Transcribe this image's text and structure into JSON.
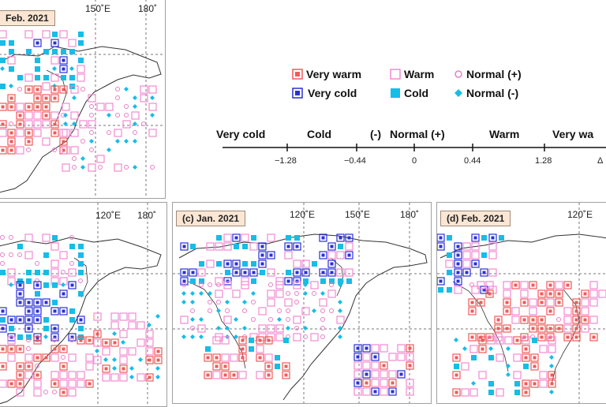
{
  "panels": {
    "b": {
      "label": "Feb. 2021"
    },
    "a": {
      "label": ""
    },
    "c": {
      "label": "(c) Jan. 2021"
    },
    "d": {
      "label": "(d) Feb. 2021"
    }
  },
  "ticks": {
    "e120": "120˚E",
    "e150": "150˚E",
    "e180": "180˚"
  },
  "legend": {
    "very_warm": "Very warm",
    "warm": "Warm",
    "normal_plus": "Normal (+)",
    "very_cold": "Very cold",
    "cold": "Cold",
    "normal_minus": "Normal (-)"
  },
  "scale": {
    "very_cold": "Very cold",
    "cold": "Cold",
    "minus": "(-)",
    "normal_plus": "Normal (+)",
    "warm": "Warm",
    "very_warm": "Very wa",
    "n1": "−1.28",
    "n2": "−0.44",
    "n3": "0",
    "n4": "0.44",
    "n5": "1.28",
    "delta": "Δ"
  },
  "colors": {
    "very_warm": "#ef5a5a",
    "warm": "#f28ad0",
    "normal_plus": "#e97fc6",
    "very_cold": "#2a2fd6",
    "cold": "#16bde6",
    "normal_minus": "#16bde6"
  }
}
